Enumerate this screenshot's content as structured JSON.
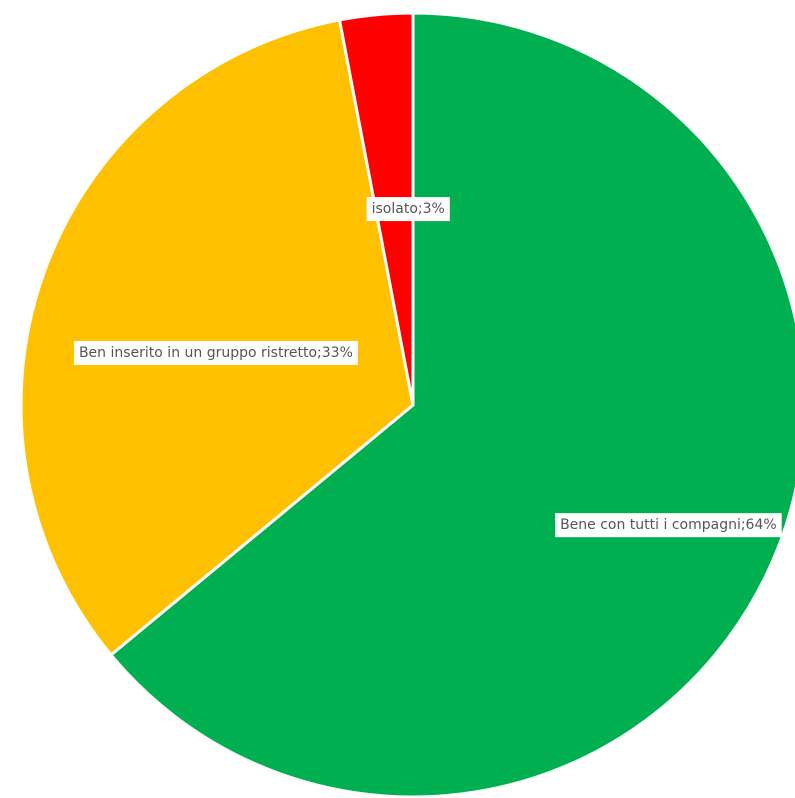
{
  "chart_data": {
    "type": "pie",
    "title": "",
    "start_angle_deg": 0,
    "direction": "clockwise",
    "grid": false,
    "legend": "none",
    "slices": [
      {
        "label": "Bene con tutti i compagni",
        "value": 64,
        "data_label": "Bene con tutti i compagni;64%",
        "color": "#00b050"
      },
      {
        "label": "Ben inserito in un gruppo ristretto",
        "value": 33,
        "data_label": "Ben inserito in un gruppo ristretto;33%",
        "color": "#ffc000"
      },
      {
        "label": "isolato",
        "value": 3,
        "data_label": "isolato;3%",
        "color": "#ff0000"
      }
    ]
  }
}
